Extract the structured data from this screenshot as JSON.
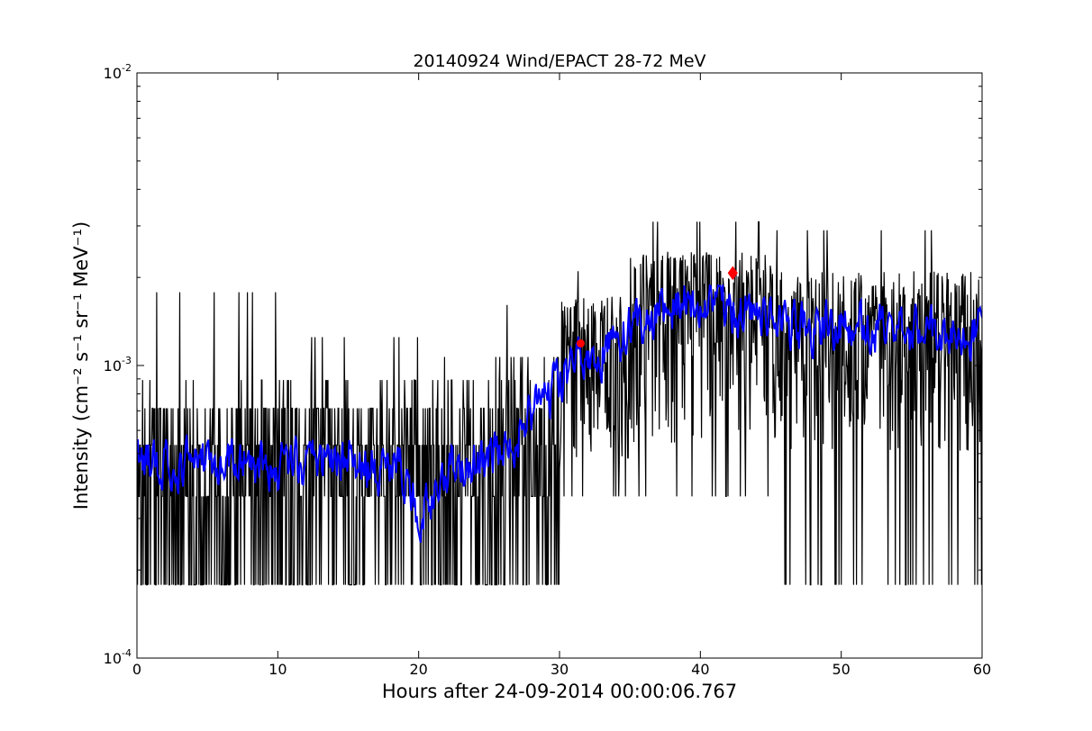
{
  "chart_data": {
    "type": "line",
    "title": "20140924 Wind/EPACT 28-72 MeV",
    "xlabel": "Hours after 24-09-2014 00:00:06.767",
    "ylabel": "Intensity (cm⁻² s⁻¹ sr⁻¹ MeV⁻¹)",
    "y_scale": "log",
    "xlim": [
      0,
      60
    ],
    "ylim": [
      0.0001,
      0.01
    ],
    "x_ticks": [
      0,
      10,
      20,
      30,
      40,
      50,
      60
    ],
    "x_tick_labels": [
      "0",
      "10",
      "20",
      "30",
      "40",
      "50",
      "60"
    ],
    "y_ticks": [
      0.0001,
      0.001,
      0.01
    ],
    "y_tick_labels": [
      [
        "10",
        "-4"
      ],
      [
        "10",
        "-3"
      ],
      [
        "10",
        "-2"
      ]
    ],
    "grid": false,
    "legend": "none",
    "series": [
      {
        "role": "raw intensity",
        "color": "#000000",
        "level_values": [
          0.000178,
          0.000357,
          0.000535,
          0.000714,
          0.000892,
          0.00107,
          0.00125,
          0.00143,
          0.00161,
          0.00178
        ],
        "segments": [
          {
            "x_start": 0,
            "x_end": 10,
            "baseline": 0.00045,
            "spread": 0.00025,
            "min": 0.000178,
            "max": 0.00178
          },
          {
            "x_start": 10,
            "x_end": 20,
            "baseline": 0.00045,
            "spread": 0.00025,
            "min": 0.000178,
            "max": 0.00125
          },
          {
            "x_start": 20,
            "x_end": 25,
            "baseline": 0.00045,
            "spread": 0.00025,
            "min": 0.000178,
            "max": 0.00107
          },
          {
            "x_start": 25,
            "x_end": 30,
            "baseline": 0.0006,
            "spread": 0.0003,
            "min": 0.000178,
            "max": 0.00161
          },
          {
            "x_start": 30,
            "x_end": 35,
            "baseline": 0.0011,
            "spread": 0.0004,
            "min": 0.000357,
            "max": 0.0021
          },
          {
            "x_start": 35,
            "x_end": 45,
            "baseline": 0.0015,
            "spread": 0.0006,
            "min": 0.000357,
            "max": 0.0031
          },
          {
            "x_start": 45,
            "x_end": 60,
            "baseline": 0.0013,
            "spread": 0.0005,
            "min": 0.000178,
            "max": 0.0029
          }
        ]
      },
      {
        "role": "smoothed intensity",
        "color": "#0000ff",
        "anchors": [
          {
            "x": 0,
            "y": 0.00048
          },
          {
            "x": 5,
            "y": 0.00047
          },
          {
            "x": 10,
            "y": 0.00047
          },
          {
            "x": 15,
            "y": 0.00048
          },
          {
            "x": 19,
            "y": 0.00042
          },
          {
            "x": 20,
            "y": 0.00031
          },
          {
            "x": 22,
            "y": 0.00045
          },
          {
            "x": 25,
            "y": 0.00047
          },
          {
            "x": 28,
            "y": 0.00065
          },
          {
            "x": 30,
            "y": 0.00085
          },
          {
            "x": 32,
            "y": 0.00105
          },
          {
            "x": 35,
            "y": 0.00135
          },
          {
            "x": 38,
            "y": 0.0016
          },
          {
            "x": 42,
            "y": 0.0016
          },
          {
            "x": 45,
            "y": 0.0014
          },
          {
            "x": 50,
            "y": 0.00135
          },
          {
            "x": 55,
            "y": 0.0013
          },
          {
            "x": 60,
            "y": 0.0013
          }
        ]
      }
    ],
    "markers": [
      {
        "x": 31.5,
        "y": 0.00119,
        "color": "#ff0000",
        "shape": "circle"
      },
      {
        "x": 42.3,
        "y": 0.00207,
        "color": "#ff0000",
        "shape": "diamond"
      }
    ]
  }
}
